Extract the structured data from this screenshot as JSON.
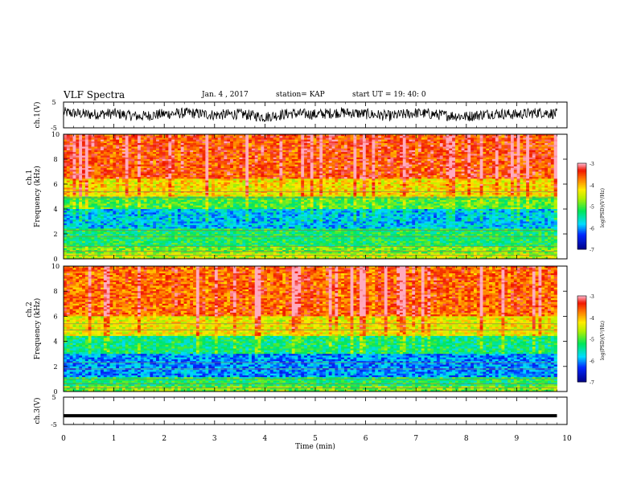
{
  "header": {
    "title": "VLF Spectra",
    "date": "Jan. 4 , 2017",
    "station": "station= KAP",
    "start_ut": "start UT = 19: 40: 0"
  },
  "chart_data": [
    {
      "type": "line",
      "panel": "ch1-waveform",
      "ylabel": "ch.1(V)",
      "ylim": [
        -5,
        5
      ],
      "yticks": [
        "5",
        "-5"
      ],
      "xlim": [
        0,
        10
      ],
      "color": "#000000",
      "x": [
        0,
        0.5,
        1,
        1.5,
        2,
        2.5,
        3,
        3.5,
        4,
        4.5,
        5,
        5.5,
        6,
        6.5,
        7,
        7.5,
        8,
        8.5,
        9,
        9.5,
        9.8
      ],
      "values": [
        1.0,
        0.2,
        0.6,
        -0.6,
        0.4,
        0.8,
        0.0,
        0.4,
        -0.8,
        0.6,
        0.2,
        1.0,
        0.4,
        -0.4,
        0.8,
        0.0,
        -0.6,
        0.6,
        0.2,
        1.0,
        0.4
      ]
    },
    {
      "type": "heatmap",
      "panel": "ch1-spectrogram",
      "ylabel_top": "ch.1",
      "ylabel": "Frequency (kHz)",
      "ylim": [
        0,
        10
      ],
      "yticks": [
        "0",
        "2",
        "4",
        "6",
        "8",
        "10"
      ],
      "xlim": [
        0,
        10
      ],
      "colorbar": {
        "label": "log(PSD)(V²/Hz)",
        "range": [
          -7,
          -3
        ],
        "ticks": [
          "-3",
          "-4",
          "-5",
          "-6",
          "-7"
        ]
      },
      "bands": [
        {
          "f": [
            0,
            0.5
          ],
          "log_psd": -4.5
        },
        {
          "f": [
            0.5,
            1
          ],
          "log_psd": -4.8
        },
        {
          "f": [
            1,
            2.5
          ],
          "log_psd": -5.2
        },
        {
          "f": [
            2.5,
            4
          ],
          "log_psd": -5.8
        },
        {
          "f": [
            4,
            5
          ],
          "log_psd": -5.0
        },
        {
          "f": [
            5,
            6.5
          ],
          "log_psd": -4.2
        },
        {
          "f": [
            6.5,
            10
          ],
          "log_psd": -3.5
        }
      ]
    },
    {
      "type": "heatmap",
      "panel": "ch2-spectrogram",
      "ylabel_top": "ch.2",
      "ylabel": "Frequency (kHz)",
      "ylim": [
        0,
        10
      ],
      "yticks": [
        "0",
        "2",
        "4",
        "6",
        "8",
        "10"
      ],
      "xlim": [
        0,
        10
      ],
      "colorbar": {
        "label": "log(PSD)(V²/Hz)",
        "range": [
          -7,
          -3
        ],
        "ticks": [
          "-3",
          "-4",
          "-5",
          "-6",
          "-7"
        ]
      },
      "bands": [
        {
          "f": [
            0,
            0.5
          ],
          "log_psd": -4.8
        },
        {
          "f": [
            0.5,
            1.2
          ],
          "log_psd": -5.2
        },
        {
          "f": [
            1.2,
            3
          ],
          "log_psd": -6.0
        },
        {
          "f": [
            3,
            4.5
          ],
          "log_psd": -5.3
        },
        {
          "f": [
            4.5,
            6
          ],
          "log_psd": -4.3
        },
        {
          "f": [
            6,
            10
          ],
          "log_psd": -3.6
        }
      ]
    },
    {
      "type": "line",
      "panel": "ch3-waveform",
      "ylabel": "ch.3(V)",
      "ylim": [
        -5,
        5
      ],
      "yticks": [
        "5",
        "-5"
      ],
      "xlim": [
        0,
        10
      ],
      "color": "#000000",
      "x": [
        0,
        9.8
      ],
      "values": [
        -1.8,
        -1.8
      ]
    },
    {
      "type": "axis",
      "panel": "time-axis",
      "xlabel": "Time (min)",
      "xlim": [
        0,
        10
      ],
      "xticks": [
        "0",
        "1",
        "2",
        "3",
        "4",
        "5",
        "6",
        "7",
        "8",
        "9",
        "10"
      ]
    }
  ]
}
